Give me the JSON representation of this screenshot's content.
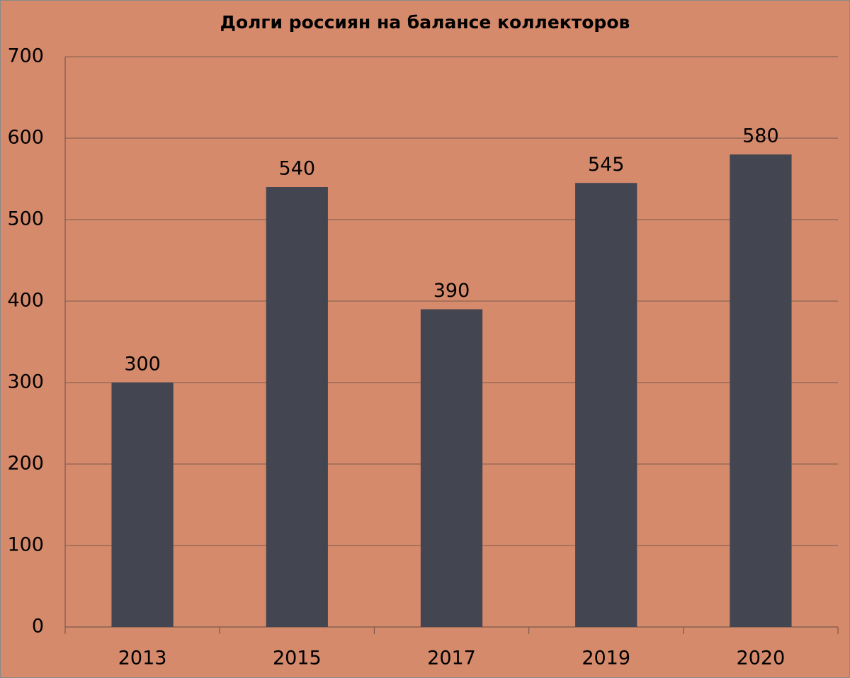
{
  "chart_data": {
    "type": "bar",
    "title": "Долги россиян на балансе коллекторов",
    "categories": [
      "2013",
      "2015",
      "2017",
      "2019",
      "2020"
    ],
    "values": [
      300,
      540,
      390,
      545,
      580
    ],
    "color": "#434651",
    "ylim": [
      0,
      700
    ],
    "yticks": [
      0,
      100,
      200,
      300,
      400,
      500,
      600,
      700
    ],
    "grid": true
  }
}
